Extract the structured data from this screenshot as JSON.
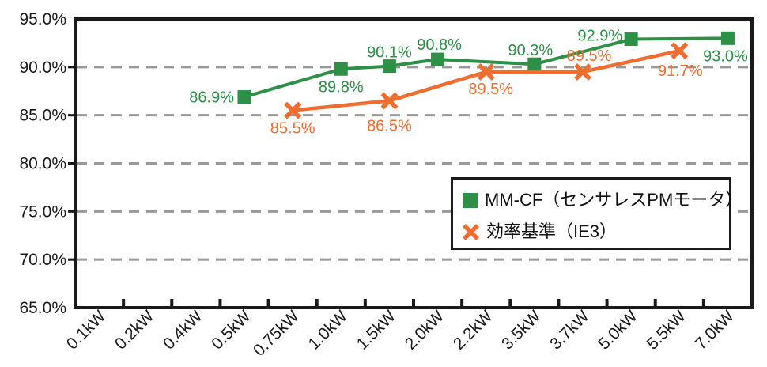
{
  "chart_data": {
    "type": "line",
    "title": "",
    "xlabel": "",
    "ylabel": "",
    "categories": [
      "0.1kW",
      "0.2kW",
      "0.4kW",
      "0.5kW",
      "0.75kW",
      "1.0kW",
      "1.5kW",
      "2.0kW",
      "2.2kW",
      "3.5kW",
      "3.7kW",
      "5.0kW",
      "5.5kW",
      "7.0kW"
    ],
    "y_axis": {
      "min": 65,
      "max": 95,
      "step": 5,
      "tick_labels": [
        "95.0%",
        "90.0%",
        "85.0%",
        "80.0%",
        "75.0%",
        "70.0%",
        "65.0%"
      ]
    },
    "grid": "horizontal-dashed",
    "legend_position": "inside-bottom-right",
    "colors": {
      "series_green": "#2e8f47",
      "series_orange": "#ee6d31",
      "gridline": "#999999",
      "axis": "#1a1a1a"
    },
    "series": [
      {
        "name": "MM-CF（センサレスPMモータ）",
        "marker": "square",
        "color": "#2e8f47",
        "points": [
          {
            "category": "0.5kW",
            "value": 86.9,
            "label": "86.9%",
            "label_anchor": "end",
            "label_dx": -13,
            "label_dy": 7
          },
          {
            "category": "1.0kW",
            "value": 89.8,
            "label": "89.8%",
            "label_anchor": "middle",
            "label_dx": 0,
            "label_dy": 29
          },
          {
            "category": "1.5kW",
            "value": 90.1,
            "label": "90.1%",
            "label_anchor": "middle",
            "label_dx": 0,
            "label_dy": -11
          },
          {
            "category": "2.0kW",
            "value": 90.8,
            "label": "90.8%",
            "label_anchor": "middle",
            "label_dx": 2,
            "label_dy": -12
          },
          {
            "category": "3.5kW",
            "value": 90.3,
            "label": "90.3%",
            "label_anchor": "middle",
            "label_dx": -5,
            "label_dy": -11
          },
          {
            "category": "5.0kW",
            "value": 92.9,
            "label": "92.9%",
            "label_anchor": "end",
            "label_dx": -11,
            "label_dy": 2
          },
          {
            "category": "7.0kW",
            "value": 93.0,
            "label": "93.0%",
            "label_anchor": "middle",
            "label_dx": -3,
            "label_dy": 29
          }
        ]
      },
      {
        "name": "効率基準（IE3）",
        "marker": "x",
        "color": "#ee6d31",
        "points": [
          {
            "category": "0.75kW",
            "value": 85.5,
            "label": "85.5%",
            "label_anchor": "middle",
            "label_dx": 0,
            "label_dy": 29
          },
          {
            "category": "1.5kW",
            "value": 86.5,
            "label": "86.5%",
            "label_anchor": "middle",
            "label_dx": 0,
            "label_dy": 38
          },
          {
            "category": "2.2kW",
            "value": 89.5,
            "label": "89.5%",
            "label_anchor": "middle",
            "label_dx": 6,
            "label_dy": 28
          },
          {
            "category": "3.7kW",
            "value": 89.5,
            "label": "89.5%",
            "label_anchor": "middle",
            "label_dx": 8,
            "label_dy": -14
          },
          {
            "category": "5.5kW",
            "value": 91.7,
            "label": "91.7%",
            "label_anchor": "middle",
            "label_dx": 1,
            "label_dy": 32
          }
        ]
      }
    ]
  },
  "legend": {
    "items": [
      {
        "label": "MM-CF（センサレスPMモータ）",
        "marker": "square"
      },
      {
        "label": "効率基準（IE3）",
        "marker": "x"
      }
    ]
  }
}
